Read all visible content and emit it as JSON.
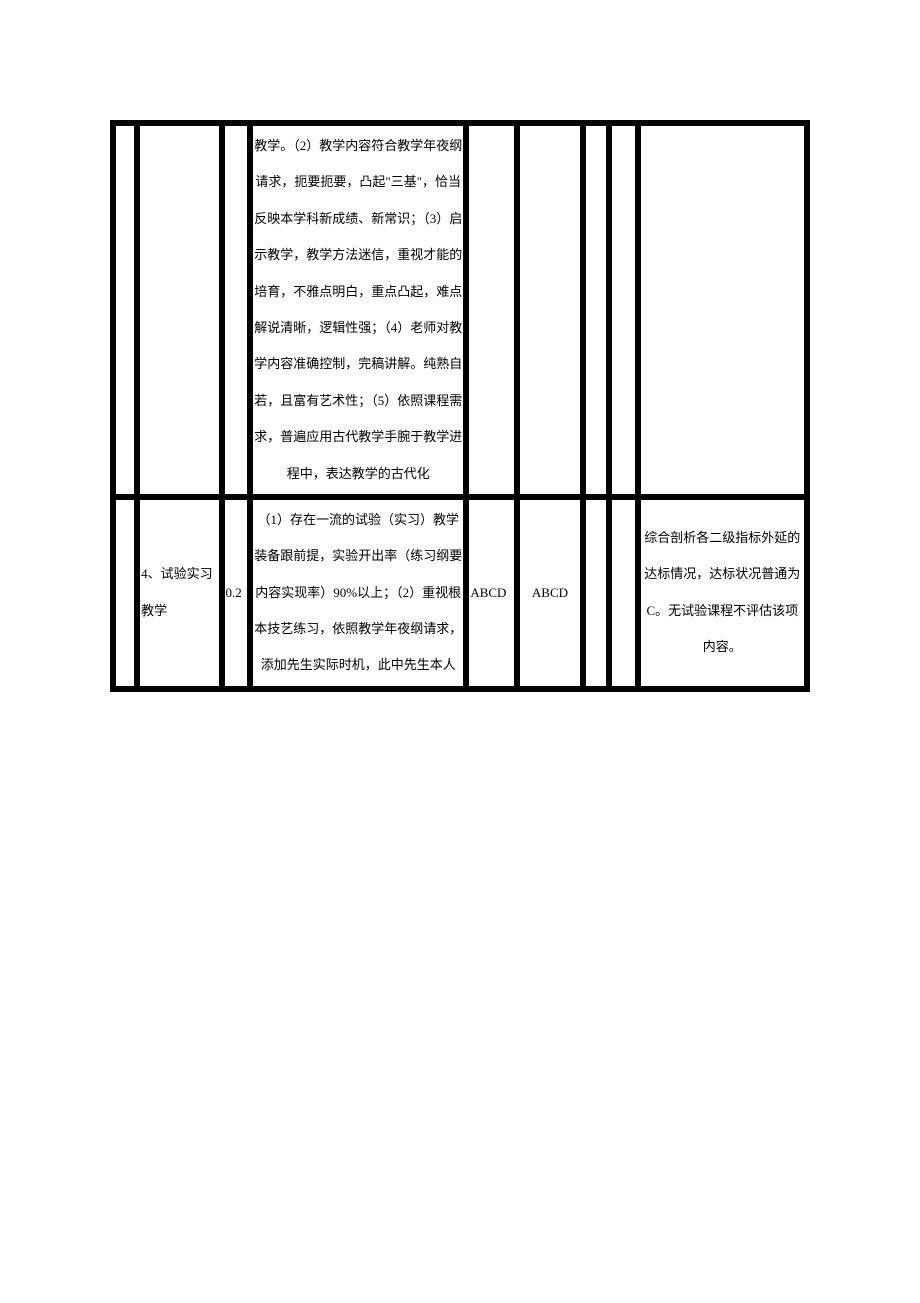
{
  "rows": [
    {
      "a": "",
      "b": "",
      "c": "",
      "d": "教学。（2）教学内容符合教学年夜纲请求，扼要扼要，凸起\"三基\"，恰当反映本学科新成绩、新常识；（3）启示教学，教学方法迷信，重视才能的培育，不雅点明白，重点凸起，难点解说清晰，逻辑性强；（4）老师对教学内容准确控制，完稿讲解。纯熟自若，且富有艺术性；（5）依照课程需求，普遍应用古代教学手腕于教学进程中，表达教学的古代化",
      "e": "",
      "f": "",
      "g": "",
      "h": "",
      "i": ""
    },
    {
      "a": "",
      "b": "4、试验实习教学",
      "c": "0.2",
      "d": "（1）存在一流的试验（实习）教学装备跟前提，实验开出率（练习纲要内容实现率）90%以上；（2）重视根本技艺练习，依照教学年夜纲请求，添加先生实际时机，此中先生本人",
      "e": "ABCD",
      "f": "ABCD",
      "g": "",
      "h": "",
      "i": "综合剖析各二级指标外延的达标情况，达标状况普通为C。无试验课程不评估该项内容。"
    }
  ]
}
